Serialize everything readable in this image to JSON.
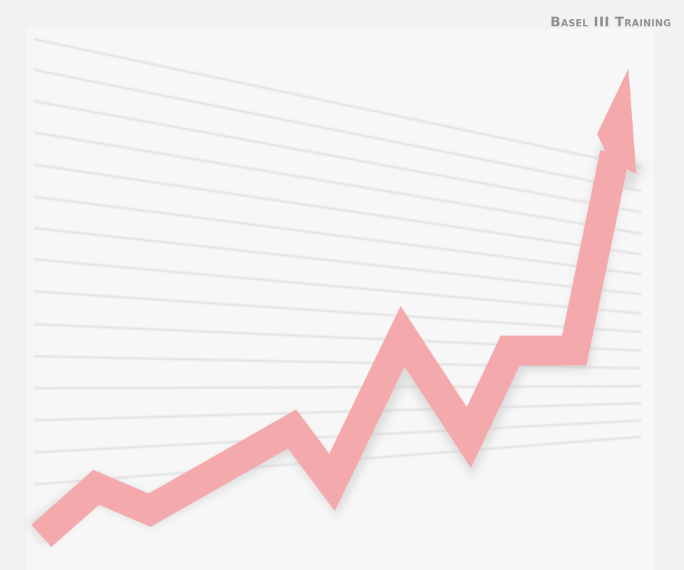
{
  "watermark": {
    "text": "Basel III Training"
  },
  "colors": {
    "background": "#f2f2f2",
    "paper": "#f7f7f7",
    "grid_line": "#d9d9d9",
    "arrow": "#f4a9ad",
    "arrow_shadow": "#c8c8c8",
    "watermark": "#8f8f8f"
  },
  "icons": {
    "arrow": "rising-zigzag-arrow-icon"
  }
}
